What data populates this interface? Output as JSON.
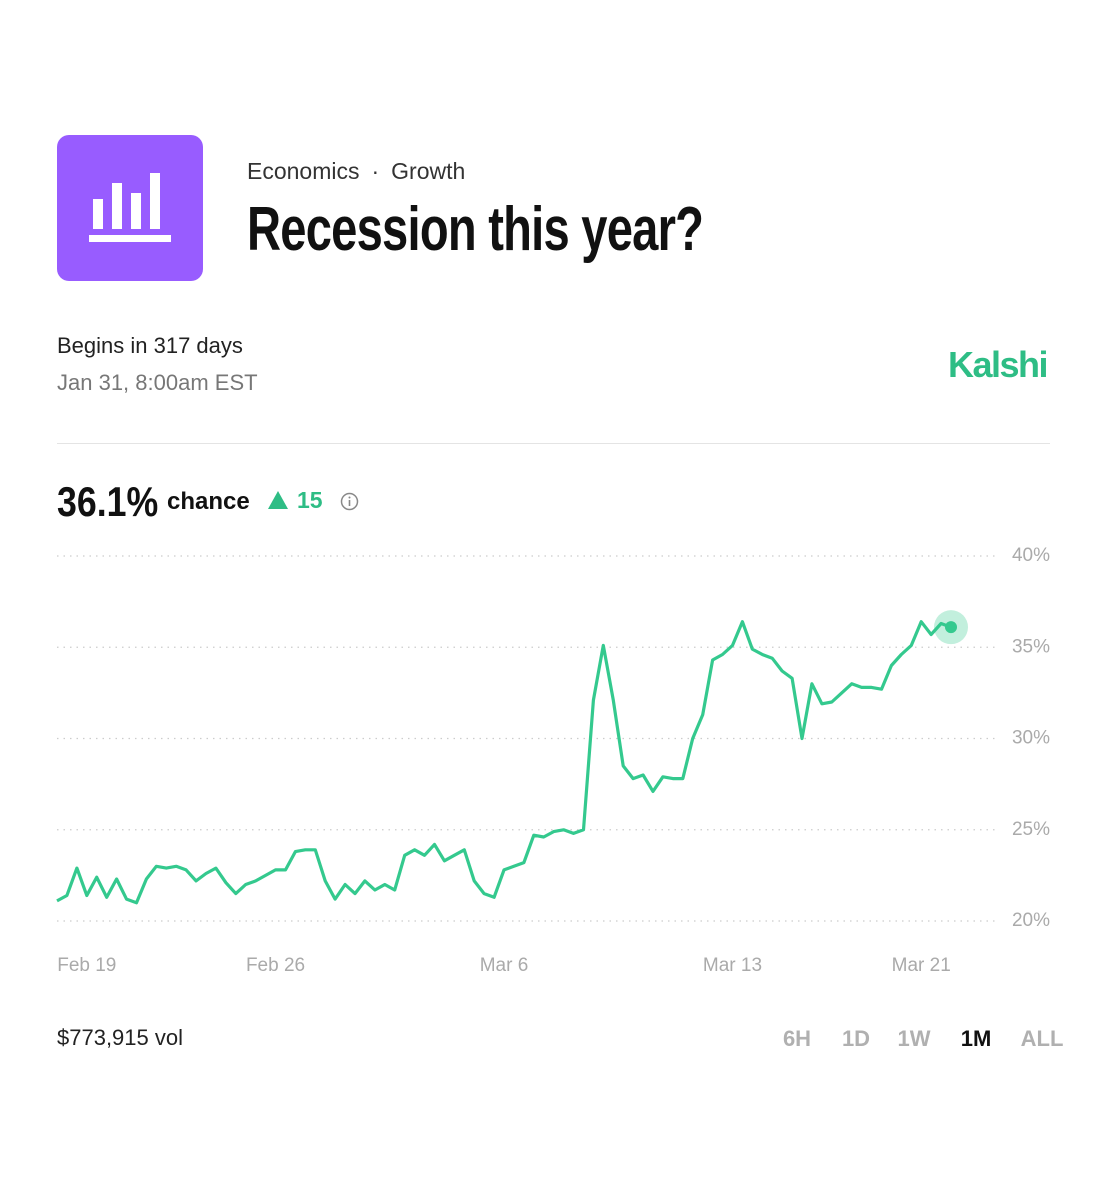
{
  "header": {
    "category": "Economics",
    "subcategory": "Growth",
    "title": "Recession this year?",
    "begins": "Begins in 317 days",
    "date": "Jan 31, 8:00am EST",
    "brand": "Kalshi"
  },
  "summary": {
    "chance_value": "36.1%",
    "chance_label": "chance",
    "change": "15"
  },
  "chart_data": {
    "type": "line",
    "color": "#34c98e",
    "grid": true,
    "categories": [
      null,
      null,
      null,
      "Feb 19",
      null,
      null,
      null,
      null,
      null,
      null,
      null,
      null,
      null,
      null,
      null,
      null,
      null,
      null,
      null,
      null,
      null,
      null,
      "Feb 26",
      null,
      null,
      null,
      null,
      null,
      null,
      null,
      null,
      null,
      null,
      null,
      null,
      null,
      null,
      null,
      null,
      null,
      null,
      null,
      null,
      null,
      null,
      "Mar 6",
      null,
      null,
      null,
      null,
      null,
      null,
      null,
      null,
      null,
      null,
      null,
      null,
      null,
      null,
      null,
      null,
      null,
      null,
      null,
      null,
      null,
      null,
      "Mar 13",
      null,
      null,
      null,
      null,
      null,
      null,
      null,
      null,
      null,
      null,
      null,
      null,
      null,
      null,
      null,
      null,
      null,
      null,
      "Mar 21",
      null,
      null,
      null
    ],
    "values": [
      21.1,
      21.4,
      22.9,
      21.4,
      22.4,
      21.3,
      22.3,
      21.2,
      21.0,
      22.3,
      23.0,
      22.9,
      23.0,
      22.8,
      22.2,
      22.6,
      22.9,
      22.1,
      21.5,
      22.0,
      22.2,
      22.5,
      22.8,
      22.8,
      23.8,
      23.9,
      23.9,
      22.2,
      21.2,
      22.0,
      21.5,
      22.2,
      21.7,
      22.0,
      21.7,
      23.6,
      23.9,
      23.6,
      24.2,
      23.3,
      23.6,
      23.9,
      22.2,
      21.5,
      21.3,
      22.8,
      23.0,
      23.2,
      24.7,
      24.6,
      24.9,
      25.0,
      24.8,
      25.0,
      32.1,
      35.1,
      32.1,
      28.5,
      27.8,
      28.0,
      27.1,
      27.9,
      27.8,
      27.8,
      30.0,
      31.3,
      34.3,
      34.6,
      35.1,
      36.4,
      34.9,
      34.6,
      34.4,
      33.7,
      33.3,
      30.0,
      33.0,
      31.9,
      32.0,
      32.5,
      33.0,
      32.8,
      32.8,
      32.7,
      34.0,
      34.6,
      35.1,
      36.4,
      35.7,
      36.3,
      36.1
    ],
    "ylim": [
      20,
      40
    ],
    "yticks": [
      {
        "value": 20,
        "label": "20%"
      },
      {
        "value": 25,
        "label": "25%"
      },
      {
        "value": 30,
        "label": "30%"
      },
      {
        "value": 35,
        "label": "35%"
      },
      {
        "value": 40,
        "label": "40%"
      }
    ]
  },
  "footer": {
    "volume": "$773,915 vol",
    "ranges": [
      "6H",
      "1D",
      "1W",
      "1M",
      "ALL"
    ],
    "active_index": 3
  }
}
